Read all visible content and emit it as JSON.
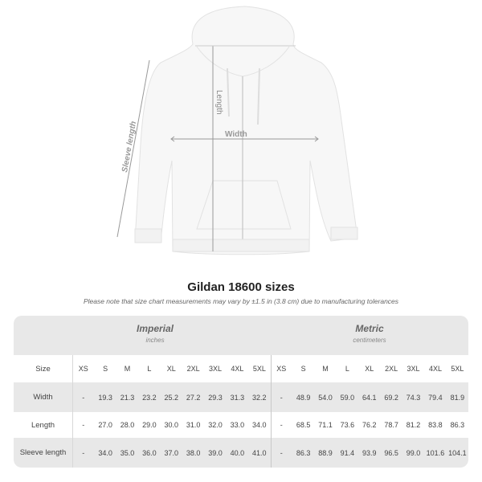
{
  "diagram_labels": {
    "length": "Length",
    "width": "Width",
    "sleeve": "Sleeve length"
  },
  "title": "Gildan 18600 sizes",
  "subtitle": "Please note that size chart measurements may vary by ±1.5 in (3.8 cm) due to manufacturing tolerances",
  "table": {
    "imperial": {
      "name": "Imperial",
      "unit": "inches"
    },
    "metric": {
      "name": "Metric",
      "unit": "centimeters"
    },
    "size_label": "Size",
    "sizes": [
      "XS",
      "S",
      "M",
      "L",
      "XL",
      "2XL",
      "3XL",
      "4XL",
      "5XL",
      "XS",
      "S",
      "M",
      "L",
      "XL",
      "2XL",
      "3XL",
      "4XL",
      "5XL"
    ],
    "rows": [
      {
        "label": "Width",
        "values": [
          "-",
          "19.3",
          "21.3",
          "23.2",
          "25.2",
          "27.2",
          "29.3",
          "31.3",
          "32.2",
          "-",
          "48.9",
          "54.0",
          "59.0",
          "64.1",
          "69.2",
          "74.3",
          "79.4",
          "81.9"
        ]
      },
      {
        "label": "Length",
        "values": [
          "-",
          "27.0",
          "28.0",
          "29.0",
          "30.0",
          "31.0",
          "32.0",
          "33.0",
          "34.0",
          "-",
          "68.5",
          "71.1",
          "73.6",
          "76.2",
          "78.7",
          "81.2",
          "83.8",
          "86.3"
        ]
      },
      {
        "label": "Sleeve length",
        "values": [
          "-",
          "34.0",
          "35.0",
          "36.0",
          "37.0",
          "38.0",
          "39.0",
          "40.0",
          "41.0",
          "-",
          "86.3",
          "88.9",
          "91.4",
          "93.9",
          "96.5",
          "99.0",
          "101.6",
          "104.1"
        ]
      }
    ]
  }
}
